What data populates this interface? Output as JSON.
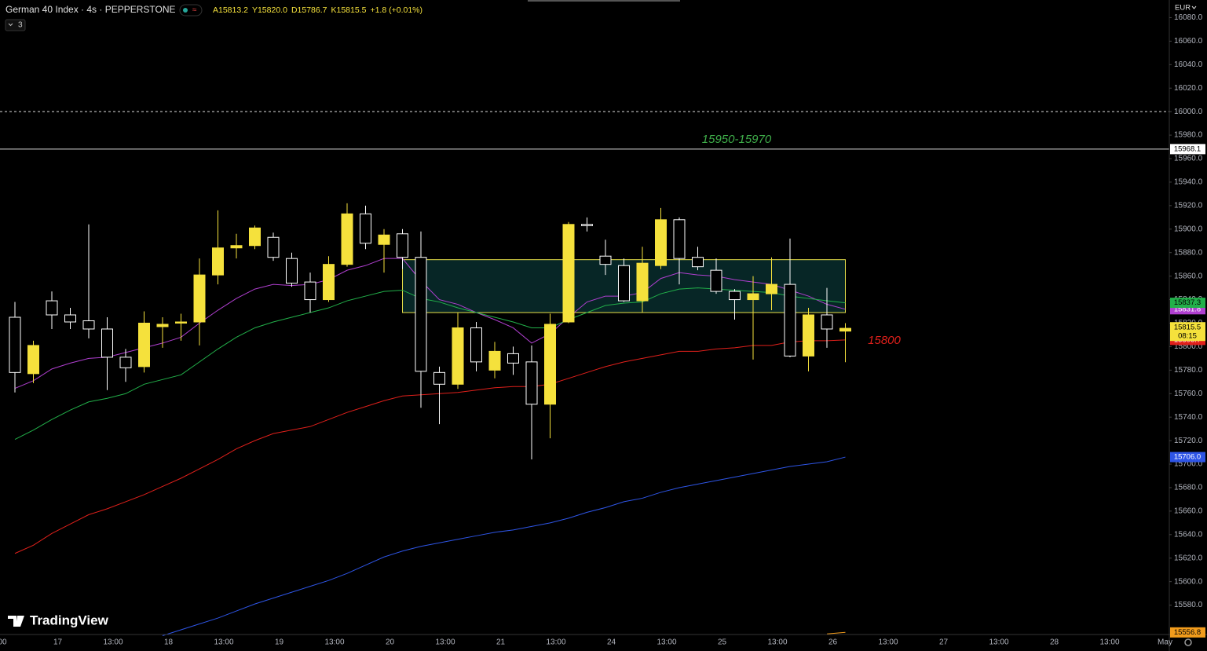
{
  "chart_data": {
    "type": "candlestick",
    "title": "German 40 Index · 4s · PEPPERSTONE",
    "ohlc": [
      "A15813.2",
      "Y15820.0",
      "D15786.7",
      "K15815.5"
    ],
    "change": "+1.8 (+0.01%)",
    "indicators": "3",
    "currency": "EUR",
    "up_color": "#f5e13c",
    "down_color": "#ffffff",
    "ylim": [
      15555,
      16095
    ],
    "yticks": [
      {
        "value": 15580,
        "label": "15580.0"
      },
      {
        "value": 15600,
        "label": "15600.0"
      },
      {
        "value": 15620,
        "label": "15620.0"
      },
      {
        "value": 15640,
        "label": "15640.0"
      },
      {
        "value": 15660,
        "label": "15660.0"
      },
      {
        "value": 15680,
        "label": "15680.0"
      },
      {
        "value": 15700,
        "label": "15700.0"
      },
      {
        "value": 15720,
        "label": "15720.0"
      },
      {
        "value": 15740,
        "label": "15740.0"
      },
      {
        "value": 15760,
        "label": "15760.0"
      },
      {
        "value": 15780,
        "label": "15780.0"
      },
      {
        "value": 15800,
        "label": "15800.0"
      },
      {
        "value": 15820,
        "label": "15820.0"
      },
      {
        "value": 15840,
        "label": "15840.0"
      },
      {
        "value": 15860,
        "label": "15860.0"
      },
      {
        "value": 15880,
        "label": "15880.0"
      },
      {
        "value": 15900,
        "label": "15900.0"
      },
      {
        "value": 15920,
        "label": "15920.0"
      },
      {
        "value": 15940,
        "label": "15940.0"
      },
      {
        "value": 15960,
        "label": "15960.0"
      },
      {
        "value": 15980,
        "label": "15980.0"
      },
      {
        "value": 16000,
        "label": "16000.0"
      },
      {
        "value": 16020,
        "label": "16020.0"
      },
      {
        "value": 16040,
        "label": "16040.0"
      },
      {
        "value": 16060,
        "label": "16060.0"
      },
      {
        "value": 16080,
        "label": "16080.0"
      }
    ],
    "x_labels": [
      "00",
      "17",
      "13:00",
      "18",
      "13:00",
      "19",
      "13:00",
      "20",
      "13:00",
      "21",
      "13:00",
      "24",
      "13:00",
      "25",
      "13:00",
      "26",
      "13:00",
      "27",
      "13:00",
      "28",
      "13:00",
      "May"
    ],
    "open": [
      15825,
      15777,
      15839,
      15827,
      15822,
      15815,
      15791,
      15783,
      15817,
      15820,
      15821,
      15861,
      15884,
      15886,
      15893,
      15875,
      15855,
      15840,
      15870,
      15913,
      15887,
      15896,
      15876,
      15778,
      15768,
      15816,
      15780,
      15794,
      15787,
      15751,
      15821,
      15904,
      15877,
      15869,
      15839,
      15869,
      15908,
      15876,
      15865,
      15847,
      15840,
      15845,
      15853,
      15792,
      15827,
      15813.2
    ],
    "high": [
      15838,
      15805,
      15847,
      15833,
      15904,
      15825,
      15798,
      15830,
      15825,
      15828,
      15875,
      15916,
      15896,
      15903,
      15897,
      15880,
      15863,
      15877,
      15922,
      15920,
      15900,
      15900,
      15898,
      15783,
      15829,
      15821,
      15804,
      15800,
      15801,
      15828,
      15906,
      15910,
      15891,
      15875,
      15885,
      15918,
      15910,
      15885,
      15875,
      15849,
      15860,
      15876,
      15892,
      15833,
      15850,
      15820.0
    ],
    "low": [
      15761,
      15769,
      15815,
      15815,
      15807,
      15763,
      15770,
      15778,
      15799,
      15805,
      15801,
      15853,
      15875,
      15883,
      15873,
      15851,
      15829,
      15838,
      15868,
      15883,
      15863,
      15866,
      15748,
      15734,
      15764,
      15779,
      15773,
      15776,
      15704,
      15722,
      15820,
      15898,
      15861,
      15838,
      15829,
      15866,
      15853,
      15865,
      15845,
      15823,
      15789,
      15831,
      15791,
      15779,
      15799,
      15786.7
    ],
    "close": [
      15778,
      15801,
      15827,
      15821,
      15815,
      15791,
      15782,
      15820,
      15819,
      15821,
      15861,
      15884,
      15886,
      15901,
      15876,
      15854,
      15840,
      15870,
      15913,
      15888,
      15895,
      15876,
      15779,
      15768,
      15816,
      15787,
      15796,
      15786,
      15751,
      15819,
      15904,
      15903,
      15870,
      15839,
      15871,
      15908,
      15875,
      15868,
      15847,
      15840,
      15845,
      15853,
      15792,
      15827,
      15815,
      15815.5
    ],
    "lines": [
      {
        "color": "#b03fd0",
        "text_color": "#ffffff",
        "axis_label": "15831.8",
        "values": [
          15764.5,
          15771,
          15781,
          15786,
          15790,
          15791,
          15795,
          15799,
          15803,
          15808,
          15820,
          15831,
          15841,
          15849,
          15853,
          15852,
          15853,
          15857,
          15865,
          15869,
          15875,
          15875,
          15856,
          15840,
          15836,
          15829,
          15823,
          15816,
          15803,
          15811,
          15825,
          15838,
          15843,
          15843,
          15846,
          15858,
          15863,
          15861,
          15860,
          15857,
          15855,
          15853,
          15848,
          15843,
          15836,
          15831.8
        ]
      },
      {
        "color": "#22b04a",
        "text_color": "#000000",
        "axis_label": "15837.3",
        "values": [
          15721,
          15729,
          15738,
          15746,
          15753,
          15756,
          15760,
          15768,
          15772,
          15776,
          15787,
          15798,
          15808,
          15816,
          15821,
          15825,
          15829,
          15833,
          15839,
          15843,
          15847,
          15848,
          15841,
          15838,
          15833,
          15829,
          15825,
          15821,
          15816,
          15816,
          15823,
          15829,
          15835,
          15837,
          15838,
          15845,
          15849,
          15850,
          15849,
          15848,
          15847,
          15846,
          15843,
          15841,
          15839,
          15837.3
        ]
      },
      {
        "color": "#e0201b",
        "text_color": "#ffffff",
        "axis_label": "15805.7",
        "values": [
          15624,
          15631,
          15641,
          15649,
          15657,
          15662,
          15668,
          15674,
          15681,
          15688,
          15696,
          15704,
          15713,
          15720,
          15726,
          15729,
          15732,
          15738,
          15744,
          15749,
          15754,
          15758,
          15759,
          15760,
          15761,
          15763,
          15765,
          15766,
          15766,
          15768,
          15773,
          15778,
          15783,
          15787,
          15790,
          15793,
          15796,
          15796,
          15798,
          15799,
          15801,
          15801,
          15804,
          15805,
          15805,
          15805.7
        ]
      },
      {
        "color": "#2e55e6",
        "text_color": "#ffffff",
        "axis_label": "15706.0",
        "values": [
          null,
          null,
          null,
          null,
          null,
          null,
          null,
          null,
          15554,
          15559,
          15564,
          15569,
          15575,
          15581,
          15586,
          15591,
          15596,
          15601,
          15607,
          15614,
          15621,
          15626,
          15630,
          15633,
          15636,
          15639,
          15642,
          15644,
          15647,
          15650,
          15654,
          15659,
          15663,
          15668,
          15671,
          15676,
          15680,
          15683,
          15686,
          15689,
          15692,
          15695,
          15698,
          15700,
          15702,
          15706.0
        ]
      },
      {
        "color": "#f29c1c",
        "text_color": "#000000",
        "axis_label": "15556.8",
        "values": [
          null,
          null,
          null,
          null,
          null,
          null,
          null,
          null,
          null,
          null,
          null,
          null,
          null,
          null,
          null,
          null,
          null,
          null,
          null,
          null,
          null,
          null,
          null,
          null,
          null,
          null,
          null,
          null,
          null,
          null,
          null,
          null,
          null,
          null,
          null,
          null,
          null,
          null,
          null,
          null,
          null,
          null,
          null,
          null,
          15555.5,
          15556.8
        ]
      }
    ],
    "zone": {
      "top": 15874,
      "bottom": 15829
    },
    "hlines": [
      {
        "value": 16000,
        "style": "dashed"
      },
      {
        "value": 15968.1,
        "style": "solid",
        "label": "15968.1"
      }
    ],
    "annotations": [
      {
        "text": "15950-15970",
        "color": "#3fae4a"
      },
      {
        "text": "15800",
        "color": "#e0201b"
      }
    ],
    "last_price": {
      "label": "15815.5",
      "countdown": "08:15"
    },
    "logo": "TradingView"
  }
}
